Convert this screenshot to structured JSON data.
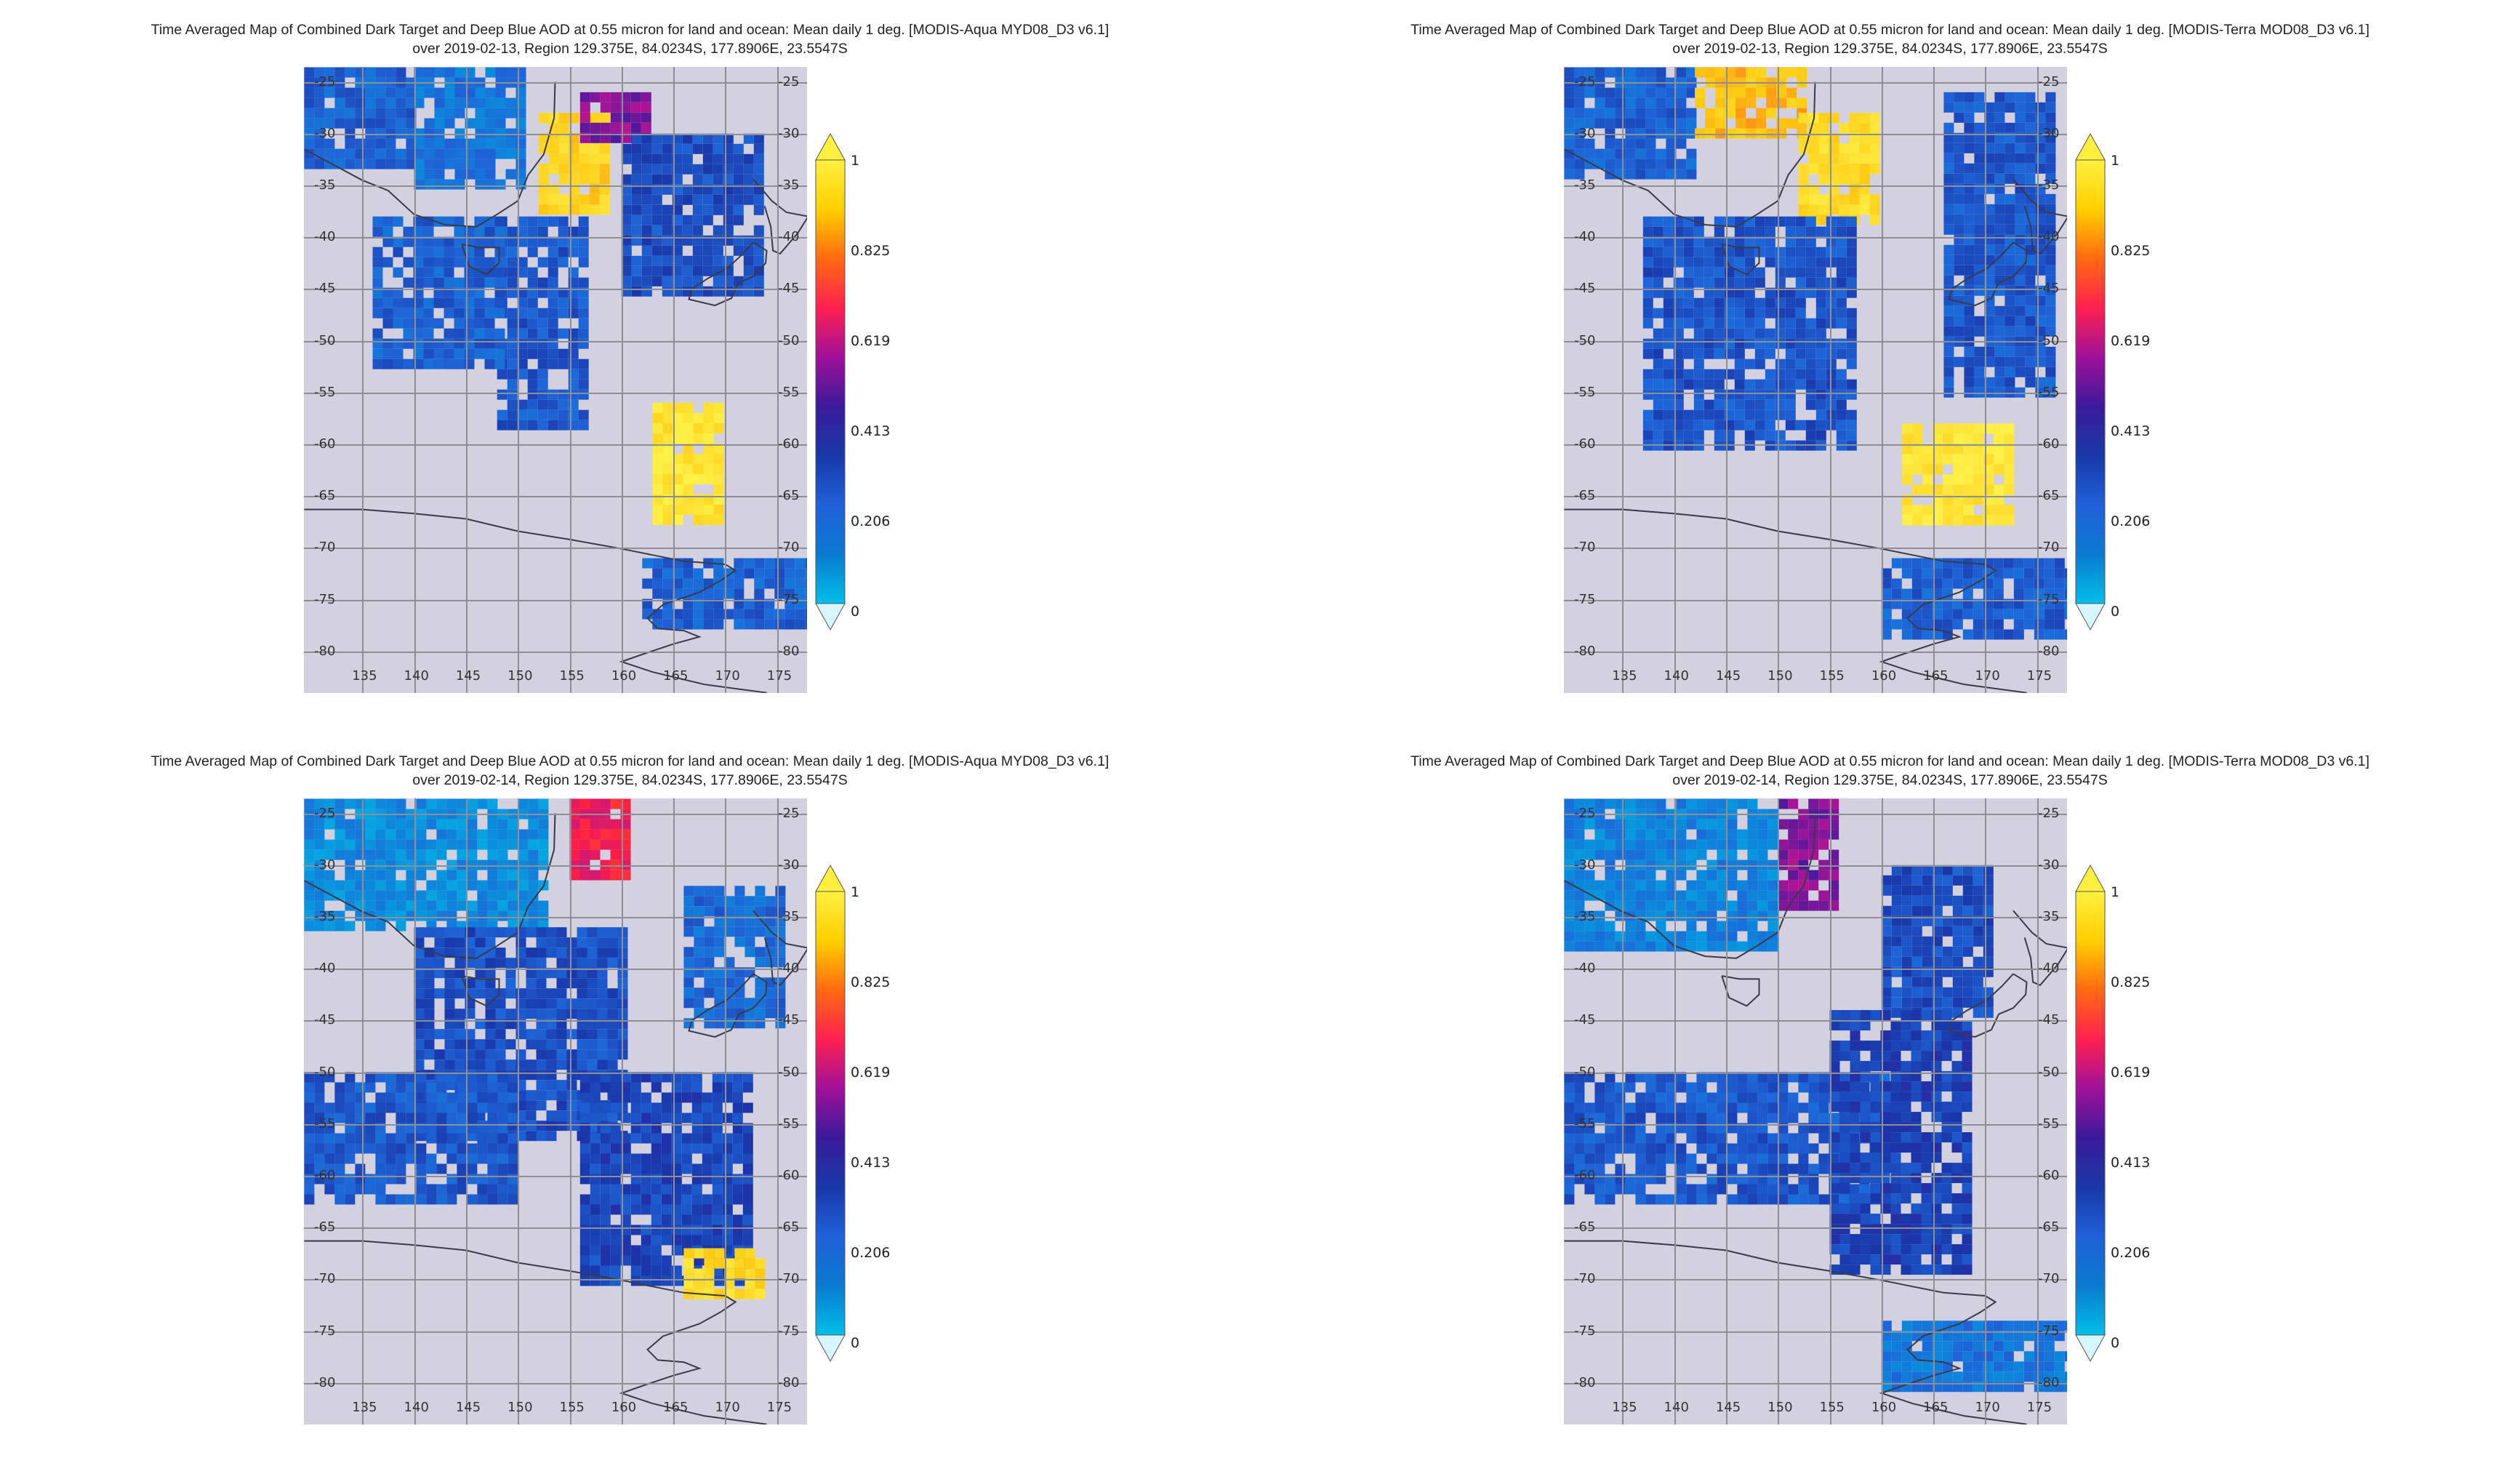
{
  "panels": [
    {
      "id": "aqua-0213",
      "title_line1": "Time Averaged Map of Combined Dark Target and Deep Blue AOD at 0.55 micron for land and ocean: Mean daily 1 deg. [MODIS-Aqua MYD08_D3 v6.1]",
      "title_line2": "over 2019-02-13, Region 129.375E, 84.0234S, 177.8906E, 23.5547S"
    },
    {
      "id": "terra-0213",
      "title_line1": "Time Averaged Map of Combined Dark Target and Deep Blue AOD at 0.55 micron for land and ocean: Mean daily 1 deg. [MODIS-Terra MOD08_D3 v6.1]",
      "title_line2": "over 2019-02-13, Region 129.375E, 84.0234S, 177.8906E, 23.5547S"
    },
    {
      "id": "aqua-0214",
      "title_line1": "Time Averaged Map of Combined Dark Target and Deep Blue AOD at 0.55 micron for land and ocean: Mean daily 1 deg. [MODIS-Aqua MYD08_D3 v6.1]",
      "title_line2": "over 2019-02-14, Region 129.375E, 84.0234S, 177.8906E, 23.5547S"
    },
    {
      "id": "terra-0214",
      "title_line1": "Time Averaged Map of Combined Dark Target and Deep Blue AOD at 0.55 micron for land and ocean: Mean daily 1 deg. [MODIS-Terra MOD08_D3 v6.1]",
      "title_line2": "over 2019-02-14, Region 129.375E, 84.0234S, 177.8906E, 23.5547S"
    }
  ],
  "map": {
    "lon_ticks": [
      "135",
      "140",
      "145",
      "150",
      "155",
      "160",
      "165",
      "170",
      "175"
    ],
    "lat_ticks": [
      "-25",
      "-30",
      "-35",
      "-40",
      "-45",
      "-50",
      "-55",
      "-60",
      "-65",
      "-70",
      "-75",
      "-80"
    ],
    "background_color": "#d3d1e0",
    "grid_color": "#8e8e96"
  },
  "colorbar": {
    "ticks": [
      "1",
      "0.825",
      "0.619",
      "0.413",
      "0.206",
      "0"
    ],
    "colors": [
      "#00bfe8",
      "#0a7ad0",
      "#2060d8",
      "#1838a8",
      "#3a1a9a",
      "#a0109a",
      "#ff2050",
      "#ff6a10",
      "#ffd000",
      "#fff040"
    ]
  },
  "aod_regions": {
    "aqua-0213": [
      {
        "lon0": 129.4,
        "lon1": 140,
        "lat0": -23.6,
        "lat1": -33,
        "aod": 0.2
      },
      {
        "lon0": 140,
        "lon1": 150,
        "lat0": -23.6,
        "lat1": -35,
        "aod": 0.15
      },
      {
        "lon0": 152,
        "lon1": 158,
        "lat0": -28,
        "lat1": -37,
        "aod": 0.9
      },
      {
        "lon0": 156,
        "lon1": 162,
        "lat0": -26,
        "lat1": -30,
        "aod": 0.45
      },
      {
        "lon0": 148,
        "lon1": 156,
        "lat0": -38,
        "lat1": -58,
        "aod": 0.22
      },
      {
        "lon0": 136,
        "lon1": 148,
        "lat0": -38,
        "lat1": -52,
        "aod": 0.2
      },
      {
        "lon0": 160,
        "lon1": 173,
        "lat0": -30,
        "lat1": -45,
        "aod": 0.24
      },
      {
        "lon0": 163,
        "lon1": 169,
        "lat0": -56,
        "lat1": -67,
        "aod": 0.95
      },
      {
        "lon0": 162,
        "lon1": 177.9,
        "lat0": -71,
        "lat1": -77,
        "aod": 0.2
      }
    ],
    "terra-0213": [
      {
        "lon0": 129.4,
        "lon1": 142,
        "lat0": -23.6,
        "lat1": -34,
        "aod": 0.2
      },
      {
        "lon0": 142,
        "lon1": 152,
        "lat0": -23.6,
        "lat1": -30,
        "aod": 0.85
      },
      {
        "lon0": 152,
        "lon1": 159,
        "lat0": -28,
        "lat1": -38,
        "aod": 0.92
      },
      {
        "lon0": 137,
        "lon1": 157,
        "lat0": -38,
        "lat1": -60,
        "aod": 0.23
      },
      {
        "lon0": 166,
        "lon1": 176,
        "lat0": -26,
        "lat1": -55,
        "aod": 0.22
      },
      {
        "lon0": 162,
        "lon1": 172,
        "lat0": -58,
        "lat1": -67,
        "aod": 0.96
      },
      {
        "lon0": 160,
        "lon1": 177.9,
        "lat0": -71,
        "lat1": -78,
        "aod": 0.21
      }
    ],
    "aqua-0214": [
      {
        "lon0": 129.4,
        "lon1": 152,
        "lat0": -23.6,
        "lat1": -36,
        "aod": 0.1
      },
      {
        "lon0": 155,
        "lon1": 160,
        "lat0": -23.6,
        "lat1": -31,
        "aod": 0.6
      },
      {
        "lon0": 140,
        "lon1": 160,
        "lat0": -36,
        "lat1": -56,
        "aod": 0.24
      },
      {
        "lon0": 129.4,
        "lon1": 150,
        "lat0": -50,
        "lat1": -62,
        "aod": 0.22
      },
      {
        "lon0": 156,
        "lon1": 172,
        "lat0": -50,
        "lat1": -70,
        "aod": 0.26
      },
      {
        "lon0": 166,
        "lon1": 173,
        "lat0": -67,
        "lat1": -71,
        "aod": 0.92
      },
      {
        "lon0": 166,
        "lon1": 175,
        "lat0": -32,
        "lat1": -45,
        "aod": 0.18
      }
    ],
    "terra-0214": [
      {
        "lon0": 129.4,
        "lon1": 150,
        "lat0": -23.6,
        "lat1": -38,
        "aod": 0.12
      },
      {
        "lon0": 150,
        "lon1": 155,
        "lat0": -23.6,
        "lat1": -34,
        "aod": 0.45
      },
      {
        "lon0": 160,
        "lon1": 170,
        "lat0": -30,
        "lat1": -44,
        "aod": 0.24
      },
      {
        "lon0": 129.4,
        "lon1": 160,
        "lat0": -50,
        "lat1": -62,
        "aod": 0.22
      },
      {
        "lon0": 155,
        "lon1": 168,
        "lat0": -44,
        "lat1": -69,
        "aod": 0.27
      },
      {
        "lon0": 160,
        "lon1": 177.9,
        "lat0": -74,
        "lat1": -80,
        "aod": 0.15
      }
    ]
  }
}
